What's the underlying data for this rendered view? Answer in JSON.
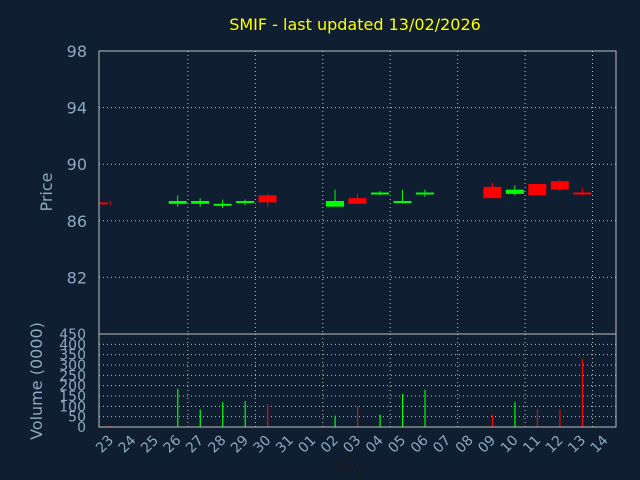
{
  "colors": {
    "background": "#0f1e30",
    "title": "#ffff00",
    "axis_text": "#8da9c4",
    "axis_label": "#8da9c4",
    "frame": "#c0c0c0",
    "grid": "#c0c0c0",
    "up": "#00ff00",
    "down": "#ff0000"
  },
  "chart_data": [
    {
      "type": "candlestick",
      "title": "SMIF - last updated 13/02/2026",
      "ylabel": "Price",
      "ylim": [
        78,
        98
      ],
      "yticks": [
        "98",
        "94",
        "90",
        "86",
        "82"
      ],
      "ytick_values": [
        98,
        94,
        90,
        86,
        82
      ],
      "grid": true,
      "categories": [
        "23",
        "24",
        "25",
        "26",
        "27",
        "28",
        "29",
        "30",
        "31",
        "01",
        "02",
        "03",
        "04",
        "05",
        "06",
        "07",
        "08",
        "09",
        "10",
        "11",
        "12",
        "13",
        "14"
      ],
      "candles": [
        {
          "day": "23",
          "open": 87.3,
          "high": 87.4,
          "low": 87.1,
          "close": 87.2
        },
        {
          "day": "26",
          "open": 87.2,
          "high": 87.8,
          "low": 87.0,
          "close": 87.4
        },
        {
          "day": "27",
          "open": 87.2,
          "high": 87.6,
          "low": 87.0,
          "close": 87.4
        },
        {
          "day": "28",
          "open": 87.1,
          "high": 87.5,
          "low": 86.9,
          "close": 87.2
        },
        {
          "day": "29",
          "open": 87.3,
          "high": 87.5,
          "low": 87.1,
          "close": 87.4
        },
        {
          "day": "30",
          "open": 87.8,
          "high": 87.9,
          "low": 87.0,
          "close": 87.3
        },
        {
          "day": "02",
          "open": 87.0,
          "high": 88.2,
          "low": 87.0,
          "close": 87.4
        },
        {
          "day": "03",
          "open": 87.6,
          "high": 87.9,
          "low": 87.2,
          "close": 87.2
        },
        {
          "day": "04",
          "open": 87.9,
          "high": 88.1,
          "low": 87.8,
          "close": 88.0
        },
        {
          "day": "05",
          "open": 87.3,
          "high": 88.2,
          "low": 87.2,
          "close": 87.4
        },
        {
          "day": "06",
          "open": 87.9,
          "high": 88.2,
          "low": 87.7,
          "close": 88.0
        },
        {
          "day": "09",
          "open": 88.4,
          "high": 88.7,
          "low": 87.6,
          "close": 87.6
        },
        {
          "day": "10",
          "open": 87.9,
          "high": 88.5,
          "low": 87.8,
          "close": 88.2
        },
        {
          "day": "11",
          "open": 88.6,
          "high": 88.6,
          "low": 87.8,
          "close": 87.8
        },
        {
          "day": "12",
          "open": 88.8,
          "high": 88.9,
          "low": 88.1,
          "close": 88.2
        },
        {
          "day": "13",
          "open": 88.0,
          "high": 88.3,
          "low": 87.8,
          "close": 87.9
        }
      ]
    },
    {
      "type": "bar",
      "ylabel": "Volume (0000)",
      "xlabel": "Day",
      "ylim": [
        0,
        450
      ],
      "yticks": [
        "450",
        "400",
        "350",
        "300",
        "250",
        "200",
        "150",
        "100",
        "50",
        "0"
      ],
      "ytick_values": [
        450,
        400,
        350,
        300,
        250,
        200,
        150,
        100,
        50,
        0
      ],
      "grid": true,
      "bars": [
        {
          "day": "23",
          "value": 5,
          "color": "down"
        },
        {
          "day": "26",
          "value": 185,
          "color": "up"
        },
        {
          "day": "27",
          "value": 85,
          "color": "up"
        },
        {
          "day": "28",
          "value": 120,
          "color": "up"
        },
        {
          "day": "29",
          "value": 125,
          "color": "up"
        },
        {
          "day": "30",
          "value": 110,
          "color": "down"
        },
        {
          "day": "02",
          "value": 55,
          "color": "up"
        },
        {
          "day": "03",
          "value": 100,
          "color": "down"
        },
        {
          "day": "04",
          "value": 60,
          "color": "up"
        },
        {
          "day": "05",
          "value": 160,
          "color": "up"
        },
        {
          "day": "06",
          "value": 180,
          "color": "up"
        },
        {
          "day": "09",
          "value": 60,
          "color": "down"
        },
        {
          "day": "10",
          "value": 120,
          "color": "up"
        },
        {
          "day": "11",
          "value": 85,
          "color": "down"
        },
        {
          "day": "12",
          "value": 85,
          "color": "down"
        },
        {
          "day": "13",
          "value": 330,
          "color": "down"
        }
      ]
    }
  ]
}
